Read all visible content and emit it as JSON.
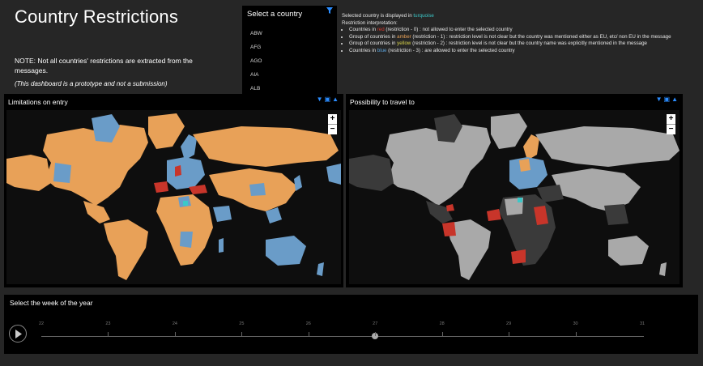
{
  "page": {
    "title": "Country Restrictions",
    "note": "NOTE: Not all countries' restrictions are extracted from the messages.",
    "prototype_note": "(This dashboard is a prototype and not a submission)"
  },
  "country_selector": {
    "header": "Select a country",
    "options": [
      "ABW",
      "AFG",
      "AGO",
      "AIA",
      "ALB"
    ]
  },
  "legend": {
    "line1_prefix": "Selected country is displayed in ",
    "line1_color_word": "turquoise",
    "line2": "Restriction interpretation:",
    "items": [
      {
        "prefix": "Countries in ",
        "color_word": "red",
        "rest": " (restriction - 0) : not allowed to enter the selected country"
      },
      {
        "prefix": "Group of countries in ",
        "color_word": "amber",
        "rest": " (restriction - 1) : restriction level is not clear but the country was mentioned either as EU, etc/ non EU in the message"
      },
      {
        "prefix": "Group of countries in ",
        "color_word": "yellow",
        "rest": " (restriction - 2) : restriction level is not clear but the country name was explicitly mentioned in the message"
      },
      {
        "prefix": "Countries in ",
        "color_word": "blue",
        "rest": " (restriction - 3) : are allowed to enter the selected country"
      }
    ]
  },
  "left_map": {
    "title": "Limitations on entry"
  },
  "right_map": {
    "title": "Possibility to travel to"
  },
  "zoom": {
    "plus": "+",
    "minus": "−"
  },
  "week_slider": {
    "title": "Select the week of the year",
    "ticks": [
      "22",
      "23",
      "24",
      "25",
      "26",
      "27",
      "28",
      "29",
      "30",
      "31"
    ],
    "selected_week": "27"
  },
  "colors": {
    "amber": "#e8a158",
    "blue": "#6a9cc8",
    "red": "#c8352a",
    "turquoise": "#3cc8c8",
    "light_grey": "#a9a9a9",
    "dark_grey": "#3a3a3a"
  }
}
